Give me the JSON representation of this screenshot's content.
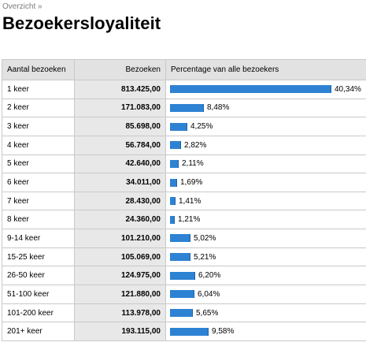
{
  "breadcrumb": {
    "link": "Overzicht",
    "separator": "»"
  },
  "page_title": "Bezoekersloyaliteit",
  "table": {
    "headers": {
      "count": "Aantal bezoeken",
      "visits": "Bezoeken",
      "percent": "Percentage van alle bezoekers"
    },
    "accent_color": "#2e82d3",
    "rows": [
      {
        "label": "1 keer",
        "visits": "813.425,00",
        "percent": "40,34%",
        "share": 40.34
      },
      {
        "label": "2 keer",
        "visits": "171.083,00",
        "percent": "8,48%",
        "share": 8.48
      },
      {
        "label": "3 keer",
        "visits": "85.698,00",
        "percent": "4,25%",
        "share": 4.25
      },
      {
        "label": "4 keer",
        "visits": "56.784,00",
        "percent": "2,82%",
        "share": 2.82
      },
      {
        "label": "5 keer",
        "visits": "42.640,00",
        "percent": "2,11%",
        "share": 2.11
      },
      {
        "label": "6 keer",
        "visits": "34.011,00",
        "percent": "1,69%",
        "share": 1.69
      },
      {
        "label": "7 keer",
        "visits": "28.430,00",
        "percent": "1,41%",
        "share": 1.41
      },
      {
        "label": "8 keer",
        "visits": "24.360,00",
        "percent": "1,21%",
        "share": 1.21
      },
      {
        "label": "9-14 keer",
        "visits": "101.210,00",
        "percent": "5,02%",
        "share": 5.02
      },
      {
        "label": "15-25 keer",
        "visits": "105.069,00",
        "percent": "5,21%",
        "share": 5.21
      },
      {
        "label": "26-50 keer",
        "visits": "124.975,00",
        "percent": "6,20%",
        "share": 6.2
      },
      {
        "label": "51-100 keer",
        "visits": "121.880,00",
        "percent": "6,04%",
        "share": 6.04
      },
      {
        "label": "101-200 keer",
        "visits": "113.978,00",
        "percent": "5,65%",
        "share": 5.65
      },
      {
        "label": "201+ keer",
        "visits": "193.115,00",
        "percent": "9,58%",
        "share": 9.58
      }
    ]
  }
}
